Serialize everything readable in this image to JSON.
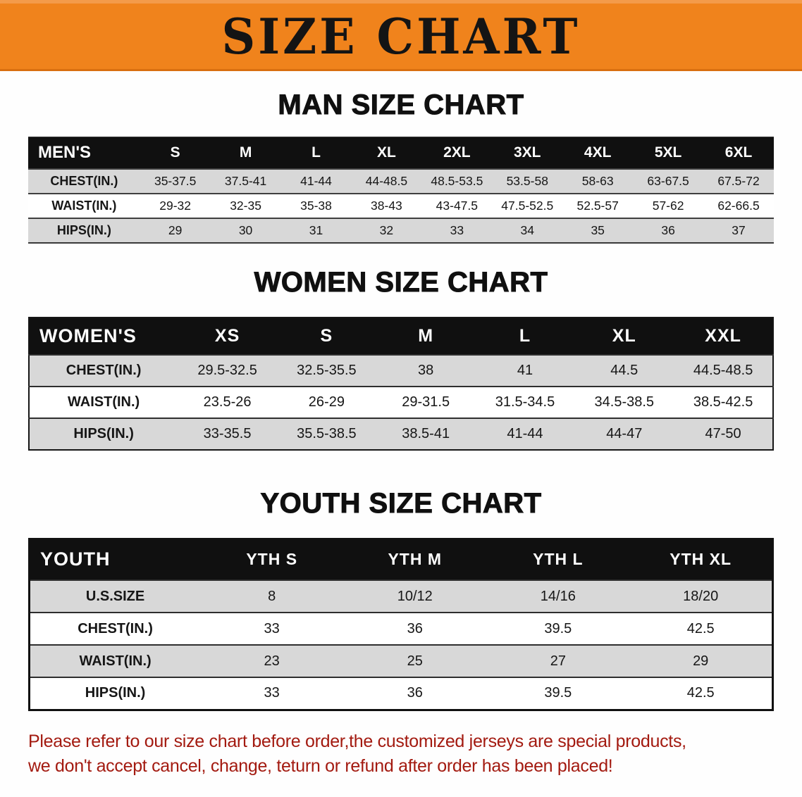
{
  "banner": {
    "title": "SIZE CHART",
    "bg_color": "#f0831c",
    "text_color": "#141414"
  },
  "sections": [
    {
      "id": "men",
      "heading": "MAN SIZE CHART",
      "columns": [
        "MEN'S",
        "S",
        "M",
        "L",
        "XL",
        "2XL",
        "3XL",
        "4XL",
        "5XL",
        "6XL"
      ],
      "rows": [
        {
          "label": "CHEST(IN.)",
          "values": [
            "35-37.5",
            "37.5-41",
            "41-44",
            "44-48.5",
            "48.5-53.5",
            "53.5-58",
            "58-63",
            "63-67.5",
            "67.5-72"
          ]
        },
        {
          "label": "WAIST(IN.)",
          "values": [
            "29-32",
            "32-35",
            "35-38",
            "38-43",
            "43-47.5",
            "47.5-52.5",
            "52.5-57",
            "57-62",
            "62-66.5"
          ]
        },
        {
          "label": "HIPS(IN.)",
          "values": [
            "29",
            "30",
            "31",
            "32",
            "33",
            "34",
            "35",
            "36",
            "37"
          ]
        }
      ]
    },
    {
      "id": "women",
      "heading": "WOMEN SIZE CHART",
      "columns": [
        "WOMEN'S",
        "XS",
        "S",
        "M",
        "L",
        "XL",
        "XXL"
      ],
      "rows": [
        {
          "label": "CHEST(IN.)",
          "values": [
            "29.5-32.5",
            "32.5-35.5",
            "38",
            "41",
            "44.5",
            "44.5-48.5"
          ]
        },
        {
          "label": "WAIST(IN.)",
          "values": [
            "23.5-26",
            "26-29",
            "29-31.5",
            "31.5-34.5",
            "34.5-38.5",
            "38.5-42.5"
          ]
        },
        {
          "label": "HIPS(IN.)",
          "values": [
            "33-35.5",
            "35.5-38.5",
            "38.5-41",
            "41-44",
            "44-47",
            "47-50"
          ]
        }
      ]
    },
    {
      "id": "youth",
      "heading": "YOUTH SIZE CHART",
      "columns": [
        "YOUTH",
        "YTH S",
        "YTH M",
        "YTH L",
        "YTH XL"
      ],
      "rows": [
        {
          "label": "U.S.SIZE",
          "values": [
            "8",
            "10/12",
            "14/16",
            "18/20"
          ]
        },
        {
          "label": "CHEST(IN.)",
          "values": [
            "33",
            "36",
            "39.5",
            "42.5"
          ]
        },
        {
          "label": "WAIST(IN.)",
          "values": [
            "23",
            "25",
            "27",
            "29"
          ]
        },
        {
          "label": "HIPS(IN.)",
          "values": [
            "33",
            "36",
            "39.5",
            "42.5"
          ]
        }
      ]
    }
  ],
  "footer": {
    "line1": "Please refer to our size chart before order,the customized jerseys are special products,",
    "line2": "we don't accept cancel, change, teturn or refund after order has been placed!",
    "text_color": "#a31a10"
  },
  "row_shade_color": "#d8d8d8",
  "header_bar_color": "#101010"
}
